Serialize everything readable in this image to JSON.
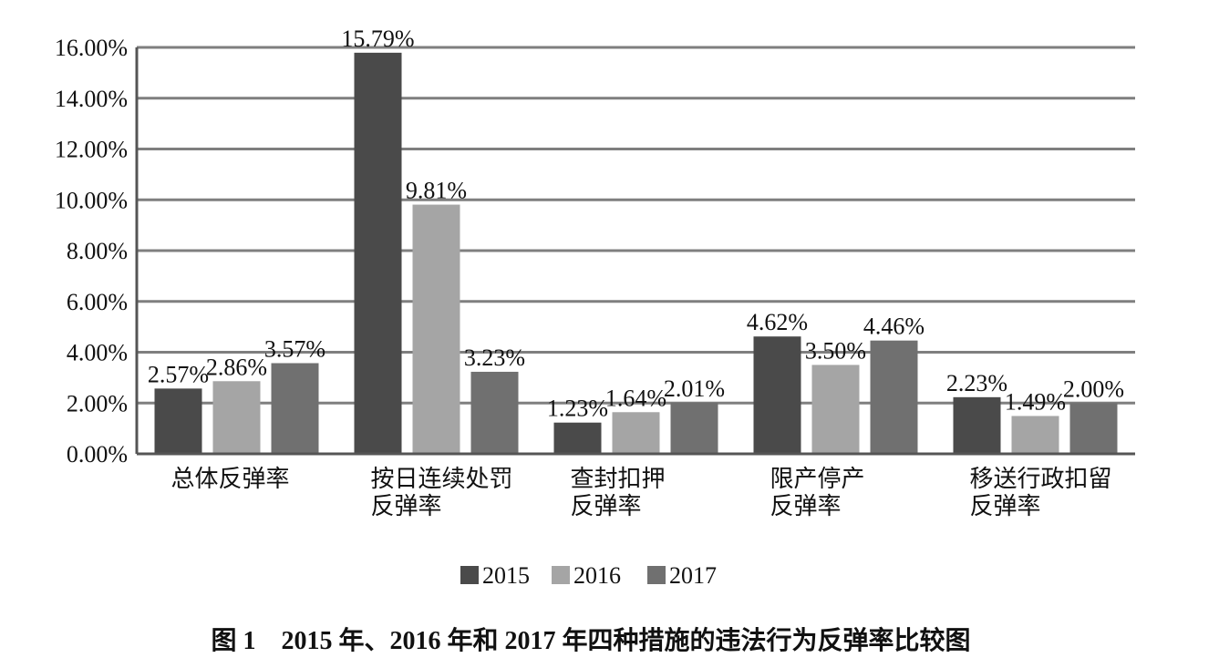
{
  "chart_data": {
    "type": "bar",
    "categories": [
      [
        "总体反弹率"
      ],
      [
        "按日连续处罚",
        "反弹率"
      ],
      [
        "查封扣押",
        "反弹率"
      ],
      [
        "限产停产",
        "反弹率"
      ],
      [
        "移送行政扣留",
        "反弹率"
      ]
    ],
    "series": [
      {
        "name": "2015",
        "color": "#4a4a4a",
        "values": [
          2.57,
          15.79,
          1.23,
          4.62,
          2.23
        ],
        "labels": [
          "2.57%",
          "15.79%",
          "1.23%",
          "4.62%",
          "2.23%"
        ]
      },
      {
        "name": "2016",
        "color": "#a5a5a5",
        "values": [
          2.86,
          9.81,
          1.64,
          3.5,
          1.49
        ],
        "labels": [
          "2.86%",
          "9.81%",
          "1.64%",
          "3.50%",
          "1.49%"
        ]
      },
      {
        "name": "2017",
        "color": "#707070",
        "values": [
          3.57,
          3.23,
          2.01,
          4.46,
          2.0
        ],
        "labels": [
          "3.57%",
          "3.23%",
          "2.01%",
          "4.46%",
          "2.00%"
        ]
      }
    ],
    "y_ticks": [
      "0.00%",
      "2.00%",
      "4.00%",
      "6.00%",
      "8.00%",
      "10.00%",
      "12.00%",
      "14.00%",
      "16.00%"
    ],
    "ylim": [
      0,
      16
    ],
    "grid": true,
    "legend_position": "bottom"
  },
  "caption": "图 1　2015 年、2016 年和 2017 年四种措施的违法行为反弹率比较图"
}
